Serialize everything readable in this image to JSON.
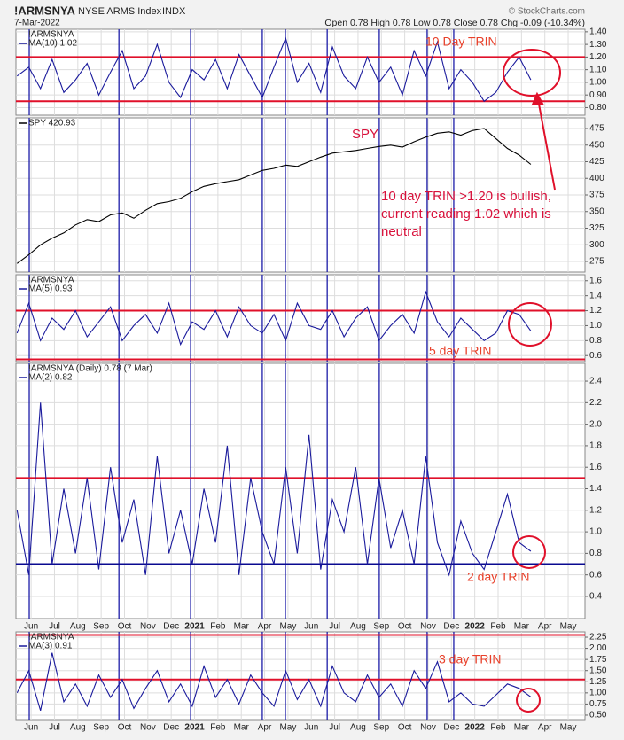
{
  "header": {
    "symbol": "!ARMSNYA",
    "name": "NYSE ARMS Index",
    "exchange": "INDX",
    "date": "7-Mar-2022",
    "quote": "Open 0.78  High 0.78  Low 0.78  Close 0.78  Chg -0.09 (-10.34%)",
    "credit": "© StockCharts.com"
  },
  "event_lines": {
    "color": "#1c1ca8",
    "x": [
      -0.08,
      3.76,
      6.83,
      9.9,
      10.89,
      12.68,
      14.91,
      16.96,
      18.1
    ]
  },
  "chart_data": [
    {
      "type": "line",
      "label": "!ARMSNYA",
      "xlim": [
        -0.65,
        23.72
      ],
      "xticks": [
        0,
        1,
        2,
        3,
        4,
        5,
        6,
        7,
        8,
        9,
        10,
        11,
        12,
        13,
        14,
        15,
        16,
        17,
        18,
        19,
        20,
        21,
        22,
        23
      ],
      "ylim": [
        0.74,
        1.42
      ],
      "yticks": [
        {
          "value": 0.8,
          "label": "0.80"
        },
        {
          "value": 0.9,
          "label": "0.90"
        },
        {
          "value": 1.0,
          "label": "1.00"
        },
        {
          "value": 1.1,
          "label": "1.10"
        },
        {
          "value": 1.2,
          "label": "1.20"
        },
        {
          "value": 1.3,
          "label": "1.30"
        },
        {
          "value": 1.4,
          "label": "1.40"
        }
      ],
      "hlines": [
        {
          "value": 1.2,
          "color": "#e0102a"
        },
        {
          "value": 0.85,
          "color": "#e0102a"
        }
      ],
      "x": [
        -0.6,
        -0.1,
        0.4,
        0.9,
        1.4,
        1.9,
        2.4,
        2.9,
        3.4,
        3.9,
        4.4,
        4.9,
        5.4,
        5.9,
        6.4,
        6.9,
        7.4,
        7.9,
        8.4,
        8.9,
        9.4,
        9.9,
        10.4,
        10.9,
        11.4,
        11.9,
        12.4,
        12.9,
        13.4,
        13.9,
        14.4,
        14.9,
        15.4,
        15.9,
        16.4,
        16.9,
        17.4,
        17.9,
        18.4,
        18.9,
        19.4,
        19.9,
        20.4,
        20.9,
        21.4
      ],
      "series": [
        {
          "name": "MA(10) 1.02",
          "color": "#1a1a9c",
          "values": [
            1.05,
            1.12,
            0.95,
            1.18,
            0.92,
            1.02,
            1.15,
            0.9,
            1.08,
            1.25,
            0.95,
            1.05,
            1.3,
            1.0,
            0.88,
            1.1,
            1.02,
            1.18,
            0.95,
            1.22,
            1.05,
            0.88,
            1.12,
            1.35,
            1.0,
            1.15,
            0.92,
            1.28,
            1.05,
            0.95,
            1.2,
            1.0,
            1.12,
            0.9,
            1.25,
            1.05,
            1.32,
            0.95,
            1.1,
            1.0,
            0.85,
            0.92,
            1.08,
            1.2,
            1.02
          ]
        }
      ],
      "annotations": [
        {
          "text": "10 Day TRIN",
          "color": "#e8402a"
        }
      ]
    },
    {
      "type": "line",
      "xlim": [
        -0.65,
        23.72
      ],
      "xticks": [
        0,
        1,
        2,
        3,
        4,
        5,
        6,
        7,
        8,
        9,
        10,
        11,
        12,
        13,
        14,
        15,
        16,
        17,
        18,
        19,
        20,
        21,
        22,
        23
      ],
      "ylim": [
        259,
        491
      ],
      "yticks": [
        275,
        300,
        325,
        350,
        375,
        400,
        425,
        450,
        475
      ],
      "hlines": [],
      "x": [
        -0.6,
        -0.1,
        0.4,
        0.9,
        1.4,
        1.9,
        2.4,
        2.9,
        3.4,
        3.9,
        4.4,
        4.9,
        5.4,
        5.9,
        6.4,
        6.9,
        7.4,
        7.9,
        8.4,
        8.9,
        9.4,
        9.9,
        10.4,
        10.9,
        11.4,
        11.9,
        12.4,
        12.9,
        13.4,
        13.9,
        14.4,
        14.9,
        15.4,
        15.9,
        16.4,
        16.9,
        17.4,
        17.9,
        18.4,
        18.9,
        19.4,
        19.9,
        20.4,
        20.9,
        21.4
      ],
      "series": [
        {
          "name": "SPY 420.93",
          "color": "#000000",
          "values": [
            272,
            285,
            300,
            310,
            318,
            330,
            338,
            335,
            345,
            348,
            340,
            352,
            362,
            365,
            370,
            380,
            388,
            392,
            395,
            398,
            405,
            412,
            415,
            420,
            418,
            425,
            432,
            438,
            440,
            442,
            445,
            448,
            450,
            447,
            455,
            462,
            468,
            470,
            465,
            472,
            475,
            460,
            445,
            435,
            421
          ]
        }
      ],
      "annotations": [
        {
          "text": "SPY",
          "color": "#d8103a"
        },
        {
          "lines": [
            "10 day TRIN >1.20 is bullish,",
            "current reading 1.02 which is",
            "neutral"
          ],
          "color": "#d8103a"
        }
      ]
    },
    {
      "type": "line",
      "label": "!ARMSNYA",
      "xlim": [
        -0.65,
        23.72
      ],
      "xticks": [
        0,
        1,
        2,
        3,
        4,
        5,
        6,
        7,
        8,
        9,
        10,
        11,
        12,
        13,
        14,
        15,
        16,
        17,
        18,
        19,
        20,
        21,
        22,
        23
      ],
      "ylim": [
        0.52,
        1.68
      ],
      "yticks": [
        0.6,
        0.8,
        {
          "value": 1.0,
          "label": "1.0"
        },
        1.2,
        1.4,
        1.6
      ],
      "hlines": [
        {
          "value": 1.2,
          "color": "#e0102a"
        },
        {
          "value": 0.55,
          "color": "#e0102a"
        }
      ],
      "x": [
        -0.6,
        -0.1,
        0.4,
        0.9,
        1.4,
        1.9,
        2.4,
        2.9,
        3.4,
        3.9,
        4.4,
        4.9,
        5.4,
        5.9,
        6.4,
        6.9,
        7.4,
        7.9,
        8.4,
        8.9,
        9.4,
        9.9,
        10.4,
        10.9,
        11.4,
        11.9,
        12.4,
        12.9,
        13.4,
        13.9,
        14.4,
        14.9,
        15.4,
        15.9,
        16.4,
        16.9,
        17.4,
        17.9,
        18.4,
        18.9,
        19.4,
        19.9,
        20.4,
        20.9,
        21.4
      ],
      "series": [
        {
          "name": "MA(5) 0.93",
          "color": "#1a1a9c",
          "values": [
            0.9,
            1.3,
            0.8,
            1.1,
            0.95,
            1.2,
            0.85,
            1.05,
            1.25,
            0.8,
            1.0,
            1.15,
            0.9,
            1.3,
            0.75,
            1.05,
            0.95,
            1.2,
            0.85,
            1.25,
            1.0,
            0.9,
            1.15,
            0.8,
            1.3,
            1.0,
            0.95,
            1.2,
            0.85,
            1.1,
            1.25,
            0.8,
            1.0,
            1.15,
            0.9,
            1.45,
            1.05,
            0.85,
            1.1,
            0.95,
            0.8,
            0.9,
            1.2,
            1.15,
            0.93
          ]
        }
      ],
      "annotations": [
        {
          "text": "5 day TRIN",
          "color": "#e8402a"
        }
      ]
    },
    {
      "type": "line",
      "label": "!ARMSNYA (Daily) 0.78 (7 Mar)",
      "xlim": [
        -0.65,
        23.72
      ],
      "xticks": [
        {
          "value": 0,
          "label": "Jun"
        },
        {
          "value": 1,
          "label": "Jul"
        },
        {
          "value": 2,
          "label": "Aug"
        },
        {
          "value": 3,
          "label": "Sep"
        },
        {
          "value": 4,
          "label": "Oct"
        },
        {
          "value": 5,
          "label": "Nov"
        },
        {
          "value": 6,
          "label": "Dec"
        },
        {
          "value": 7,
          "label": "2021"
        },
        {
          "value": 8,
          "label": "Feb"
        },
        {
          "value": 9,
          "label": "Mar"
        },
        {
          "value": 10,
          "label": "Apr"
        },
        {
          "value": 11,
          "label": "May"
        },
        {
          "value": 12,
          "label": "Jun"
        },
        {
          "value": 13,
          "label": "Jul"
        },
        {
          "value": 14,
          "label": "Aug"
        },
        {
          "value": 15,
          "label": "Sep"
        },
        {
          "value": 16,
          "label": "Oct"
        },
        {
          "value": 17,
          "label": "Nov"
        },
        {
          "value": 18,
          "label": "Dec"
        },
        {
          "value": 19,
          "label": "2022"
        },
        {
          "value": 20,
          "label": "Feb"
        },
        {
          "value": 21,
          "label": "Mar"
        },
        {
          "value": 22,
          "label": "Apr"
        },
        {
          "value": 23,
          "label": "May"
        }
      ],
      "ylim": [
        0.194,
        2.565
      ],
      "yticks": [
        0.4,
        0.6,
        0.8,
        {
          "value": 1.0,
          "label": "1.0"
        },
        1.2,
        1.4,
        1.6,
        1.8,
        {
          "value": 2.0,
          "label": "2.0"
        },
        2.2,
        2.4
      ],
      "hlines": [
        {
          "value": 1.5,
          "color": "#e0102a"
        },
        {
          "value": 0.7,
          "color": "#0a0a90"
        }
      ],
      "x": [
        -0.6,
        -0.1,
        0.4,
        0.9,
        1.4,
        1.9,
        2.4,
        2.9,
        3.4,
        3.9,
        4.4,
        4.9,
        5.4,
        5.9,
        6.4,
        6.9,
        7.4,
        7.9,
        8.4,
        8.9,
        9.4,
        9.9,
        10.4,
        10.9,
        11.4,
        11.9,
        12.4,
        12.9,
        13.4,
        13.9,
        14.4,
        14.9,
        15.4,
        15.9,
        16.4,
        16.9,
        17.4,
        17.9,
        18.4,
        18.9,
        19.4,
        19.9,
        20.4,
        20.9,
        21.4
      ],
      "series": [
        {
          "name": "MA(2) 0.82",
          "color": "#1a1a9c",
          "values": [
            1.2,
            0.6,
            2.2,
            0.7,
            1.4,
            0.8,
            1.5,
            0.65,
            1.6,
            0.9,
            1.3,
            0.6,
            1.7,
            0.8,
            1.2,
            0.7,
            1.4,
            0.9,
            1.8,
            0.6,
            1.5,
            1.0,
            0.7,
            1.6,
            0.8,
            1.9,
            0.65,
            1.3,
            1.0,
            1.6,
            0.7,
            1.5,
            0.85,
            1.2,
            0.7,
            1.7,
            0.9,
            0.6,
            1.1,
            0.8,
            0.65,
            1.0,
            1.35,
            0.9,
            0.82
          ]
        }
      ],
      "annotations": [
        {
          "text": "2 day TRIN",
          "color": "#e8402a"
        }
      ]
    },
    {
      "type": "line",
      "label": "!ARMSNYA",
      "xlim": [
        -0.65,
        23.72
      ],
      "xticks": [
        {
          "value": 0,
          "label": "Jun"
        },
        {
          "value": 1,
          "label": "Jul"
        },
        {
          "value": 2,
          "label": "Aug"
        },
        {
          "value": 3,
          "label": "Sep"
        },
        {
          "value": 4,
          "label": "Oct"
        },
        {
          "value": 5,
          "label": "Nov"
        },
        {
          "value": 6,
          "label": "Dec"
        },
        {
          "value": 7,
          "label": "2021"
        },
        {
          "value": 8,
          "label": "Feb"
        },
        {
          "value": 9,
          "label": "Mar"
        },
        {
          "value": 10,
          "label": "Apr"
        },
        {
          "value": 11,
          "label": "May"
        },
        {
          "value": 12,
          "label": "Jun"
        },
        {
          "value": 13,
          "label": "Jul"
        },
        {
          "value": 14,
          "label": "Aug"
        },
        {
          "value": 15,
          "label": "Sep"
        },
        {
          "value": 16,
          "label": "Oct"
        },
        {
          "value": 17,
          "label": "Nov"
        },
        {
          "value": 18,
          "label": "Dec"
        },
        {
          "value": 19,
          "label": "2022"
        },
        {
          "value": 20,
          "label": "Feb"
        },
        {
          "value": 21,
          "label": "Mar"
        },
        {
          "value": 22,
          "label": "Apr"
        },
        {
          "value": 23,
          "label": "May"
        }
      ],
      "ylim": [
        0.4,
        2.37
      ],
      "yticks": [
        {
          "value": 0.5,
          "label": "0.50"
        },
        0.75,
        {
          "value": 1.0,
          "label": "1.00"
        },
        1.25,
        {
          "value": 1.5,
          "label": "1.50"
        },
        1.75,
        {
          "value": 2.0,
          "label": "2.00"
        },
        2.25
      ],
      "hlines": [
        {
          "value": 2.3,
          "color": "#e0102a"
        },
        {
          "value": 1.3,
          "color": "#e0102a"
        }
      ],
      "x": [
        -0.6,
        -0.1,
        0.4,
        0.9,
        1.4,
        1.9,
        2.4,
        2.9,
        3.4,
        3.9,
        4.4,
        4.9,
        5.4,
        5.9,
        6.4,
        6.9,
        7.4,
        7.9,
        8.4,
        8.9,
        9.4,
        9.9,
        10.4,
        10.9,
        11.4,
        11.9,
        12.4,
        12.9,
        13.4,
        13.9,
        14.4,
        14.9,
        15.4,
        15.9,
        16.4,
        16.9,
        17.4,
        17.9,
        18.4,
        18.9,
        19.4,
        19.9,
        20.4,
        20.9,
        21.4
      ],
      "series": [
        {
          "name": "MA(3) 0.91",
          "color": "#1a1a9c",
          "values": [
            1.0,
            1.5,
            0.6,
            1.9,
            0.8,
            1.2,
            0.7,
            1.4,
            0.9,
            1.3,
            0.65,
            1.1,
            1.5,
            0.8,
            1.2,
            0.7,
            1.6,
            0.9,
            1.3,
            0.75,
            1.4,
            1.0,
            0.7,
            1.5,
            0.85,
            1.3,
            0.7,
            1.6,
            1.0,
            0.8,
            1.4,
            0.9,
            1.2,
            0.7,
            1.5,
            1.1,
            1.7,
            0.8,
            1.0,
            0.75,
            0.7,
            0.95,
            1.2,
            1.1,
            0.91
          ]
        }
      ],
      "annotations": [
        {
          "text": "3 day TRIN",
          "color": "#e8402a"
        }
      ]
    }
  ]
}
